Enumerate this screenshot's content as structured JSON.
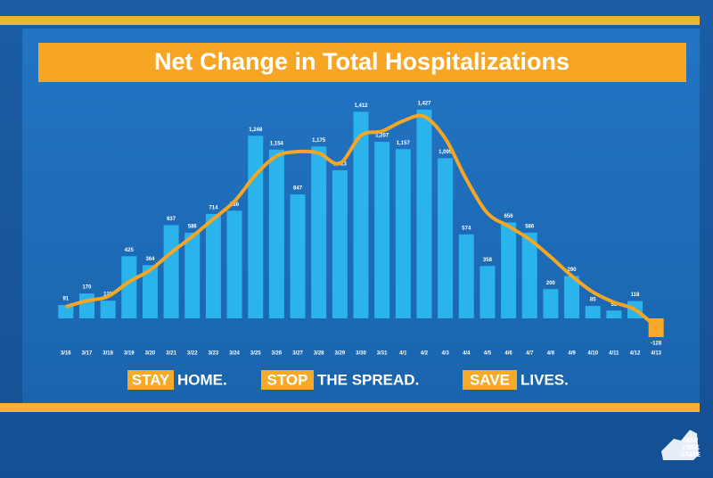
{
  "chart_data": {
    "type": "bar",
    "title": "Net Change in Total Hospitalizations",
    "categories": [
      "3/16",
      "3/17",
      "3/18",
      "3/19",
      "3/20",
      "3/21",
      "3/22",
      "3/23",
      "3/24",
      "3/25",
      "3/26",
      "3/27",
      "3/28",
      "3/29",
      "3/30",
      "3/31",
      "4/1",
      "4/2",
      "4/3",
      "4/4",
      "4/5",
      "4/6",
      "4/7",
      "4/8",
      "4/9",
      "4/10",
      "4/11",
      "4/12",
      "4/13"
    ],
    "values": [
      91,
      170,
      121,
      425,
      364,
      637,
      586,
      714,
      736,
      1248,
      1154,
      847,
      1175,
      1013,
      1412,
      1207,
      1157,
      1427,
      1095,
      574,
      358,
      656,
      586,
      200,
      290,
      85,
      53,
      118,
      -128
    ],
    "value_labels": [
      "91",
      "170",
      "121",
      "425",
      "364",
      "637",
      "586",
      "714",
      "736",
      "1,248",
      "1,154",
      "847",
      "1,175",
      "1,013",
      "1,412",
      "1,207",
      "1,157",
      "1,427",
      "1,095",
      "574",
      "358",
      "656",
      "586",
      "200",
      "290",
      "85",
      "53",
      "118",
      "-128"
    ],
    "color": "#2bb3ec",
    "negative_color": "#f7a928",
    "trend": {
      "color": "#f5a623",
      "values": [
        80,
        120,
        150,
        250,
        330,
        450,
        560,
        680,
        800,
        980,
        1110,
        1140,
        1130,
        1060,
        1250,
        1280,
        1350,
        1380,
        1230,
        950,
        720,
        630,
        540,
        420,
        290,
        180,
        110,
        60,
        -60
      ]
    },
    "ylim": [
      -150,
      1600
    ],
    "footer": [
      {
        "highlight": "STAY",
        "text": "HOME."
      },
      {
        "highlight": "STOP",
        "text": "THE SPREAD."
      },
      {
        "highlight": "SAVE",
        "text": "LIVES."
      }
    ],
    "logo": [
      "NEW",
      "YORK",
      "STATE"
    ]
  }
}
